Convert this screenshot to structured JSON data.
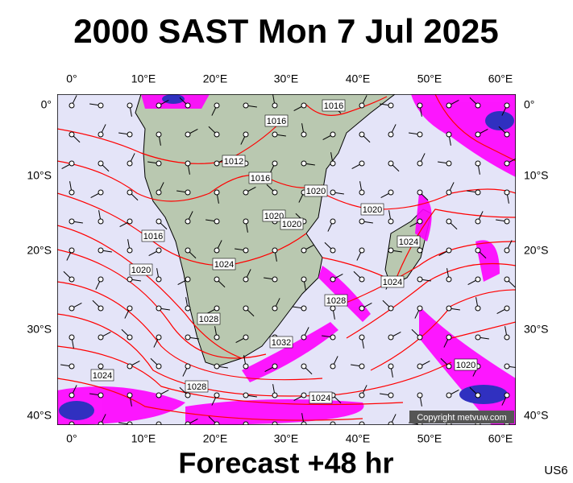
{
  "header": {
    "title": "2000 SAST Mon 7 Jul 2025"
  },
  "footer": {
    "forecast": "Forecast +48 hr",
    "code": "US6",
    "copyright": "Copyright metvuw.com"
  },
  "map": {
    "lon_labels": [
      "0°",
      "10°E",
      "20°E",
      "30°E",
      "40°E",
      "50°E",
      "60°E"
    ],
    "lat_labels": [
      "0°",
      "10°S",
      "20°S",
      "30°S",
      "40°S"
    ],
    "isobar_labels": [
      "1016",
      "1016",
      "1012",
      "1016",
      "1020",
      "1020",
      "1020",
      "1020",
      "1016",
      "1024",
      "1020",
      "1024",
      "1024",
      "1028",
      "1028",
      "1032",
      "1020",
      "1024",
      "1028",
      "1024"
    ]
  }
}
